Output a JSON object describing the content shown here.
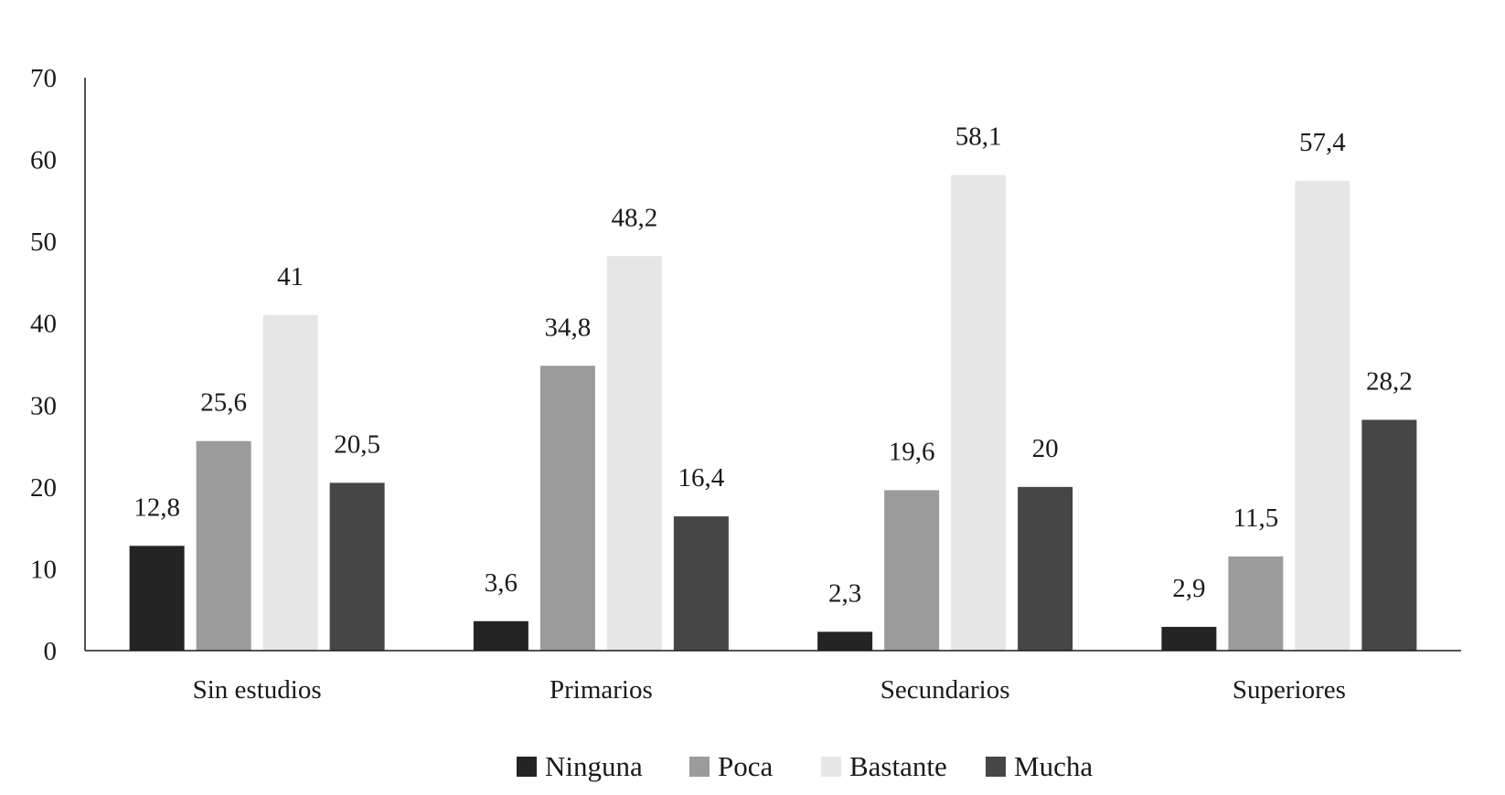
{
  "chart_data": {
    "type": "bar",
    "categories": [
      "Sin estudios",
      "Primarios",
      "Secundarios",
      "Superiores"
    ],
    "series": [
      {
        "name": "Ninguna",
        "values": [
          12.8,
          3.6,
          2.3,
          2.9
        ],
        "labels": [
          "12,8",
          "3,6",
          "2,3",
          "2,9"
        ],
        "color": "#242424"
      },
      {
        "name": "Poca",
        "values": [
          25.6,
          34.8,
          19.6,
          11.5
        ],
        "labels": [
          "25,6",
          "34,8",
          "19,6",
          "11,5"
        ],
        "color": "#9b9b9b"
      },
      {
        "name": "Bastante",
        "values": [
          41,
          48.2,
          58.1,
          57.4
        ],
        "labels": [
          "41",
          "48,2",
          "58,1",
          "57,4"
        ],
        "color": "#e6e6e6"
      },
      {
        "name": "Mucha",
        "values": [
          20.5,
          16.4,
          20,
          28.2
        ],
        "labels": [
          "20,5",
          "16,4",
          "20",
          "28,2"
        ],
        "color": "#464646"
      }
    ],
    "y_ticks": [
      "0",
      "10",
      "20",
      "30",
      "40",
      "50",
      "60",
      "70"
    ],
    "ylim": [
      0,
      70
    ],
    "grid": false,
    "legend_position": "bottom",
    "title": "",
    "xlabel": "",
    "ylabel": ""
  }
}
